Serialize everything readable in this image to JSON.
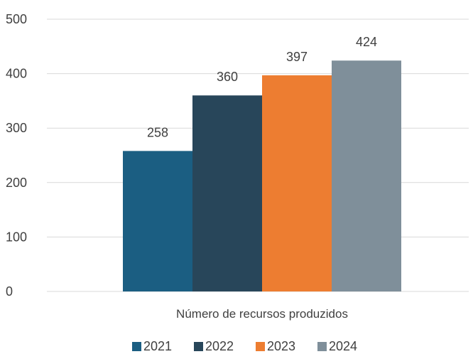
{
  "chart_data": {
    "type": "bar",
    "categories": [
      "Número de recursos produzidos"
    ],
    "series": [
      {
        "name": "2021",
        "values": [
          258
        ],
        "color": "#1b5e82"
      },
      {
        "name": "2022",
        "values": [
          360
        ],
        "color": "#28465a"
      },
      {
        "name": "2023",
        "values": [
          397
        ],
        "color": "#ed7d31"
      },
      {
        "name": "2024",
        "values": [
          424
        ],
        "color": "#7f8f9a"
      }
    ],
    "ylim": [
      0,
      500
    ],
    "yticks": [
      0,
      100,
      200,
      300,
      400,
      500
    ],
    "grid": true,
    "legend_position": "bottom",
    "data_labels": true
  }
}
